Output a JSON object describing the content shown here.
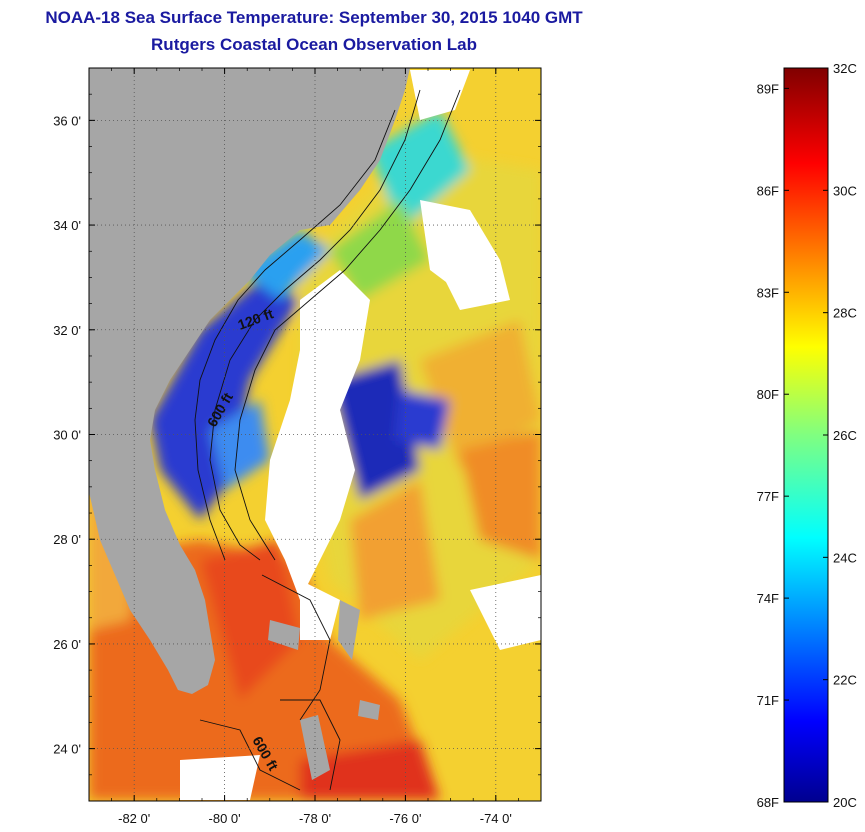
{
  "title": {
    "line1": "NOAA-18 Sea Surface Temperature:  September 30, 2015 1040 GMT",
    "line2": "Rutgers Coastal Ocean Observation Lab"
  },
  "map": {
    "lon_range": [
      -83,
      -73
    ],
    "lat_range": [
      23,
      37
    ],
    "lat_ticks": [
      {
        "value": 24,
        "label": "24 0'"
      },
      {
        "value": 26,
        "label": "26 0'"
      },
      {
        "value": 28,
        "label": "28 0'"
      },
      {
        "value": 30,
        "label": "30 0'"
      },
      {
        "value": 32,
        "label": "32 0'"
      },
      {
        "value": 34,
        "label": "34 0'"
      },
      {
        "value": 36,
        "label": "36 0'"
      }
    ],
    "lon_ticks": [
      {
        "value": -82,
        "label": "-82 0'"
      },
      {
        "value": -80,
        "label": "-80 0'"
      },
      {
        "value": -78,
        "label": "-78 0'"
      },
      {
        "value": -76,
        "label": "-76 0'"
      },
      {
        "value": -74,
        "label": "-74 0'"
      }
    ],
    "land_color": "#a6a6a6",
    "cloud_color": "#ffffff",
    "contour_labels": [
      "120 ft",
      "600 ft",
      "600 ft"
    ]
  },
  "colorbar": {
    "range_c": [
      20,
      32
    ],
    "celsius_labels": [
      "32C",
      "30C",
      "28C",
      "26C",
      "24C",
      "22C",
      "20C"
    ],
    "fahrenheit_labels": [
      "89F",
      "86F",
      "83F",
      "80F",
      "77F",
      "74F",
      "71F",
      "68F"
    ],
    "colormap": "jet"
  }
}
